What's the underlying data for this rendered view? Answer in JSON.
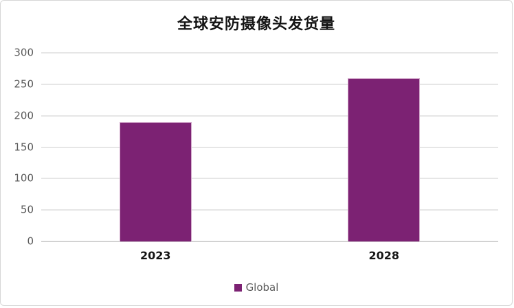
{
  "chart": {
    "title": "全球安防摄像头发货量",
    "legend": {
      "label": "Global"
    }
  },
  "chart_data": {
    "type": "bar",
    "title": "全球安防摄像头发货量",
    "categories": [
      "2023",
      "2028"
    ],
    "series": [
      {
        "name": "Global",
        "values": [
          190,
          260
        ]
      }
    ],
    "xlabel": "",
    "ylabel": "",
    "ylim": [
      0,
      300
    ],
    "ytick_step": 50,
    "ytick_labels": [
      "0",
      "50",
      "100",
      "150",
      "200",
      "250",
      "300"
    ],
    "grid": "horizontal-on",
    "legend_position": "bottom-center",
    "bar_color": "#7C2273"
  },
  "colors": {
    "bar": "#7C2273",
    "bar_edge": "#D2A9CB",
    "gridline": "#E6E6E6",
    "zero_line": "#D2D2D2",
    "axis_label": "#5A5A5A",
    "title_text": "#141414",
    "frame_border": "#D6D6D6",
    "background": "#FFFFFF"
  }
}
